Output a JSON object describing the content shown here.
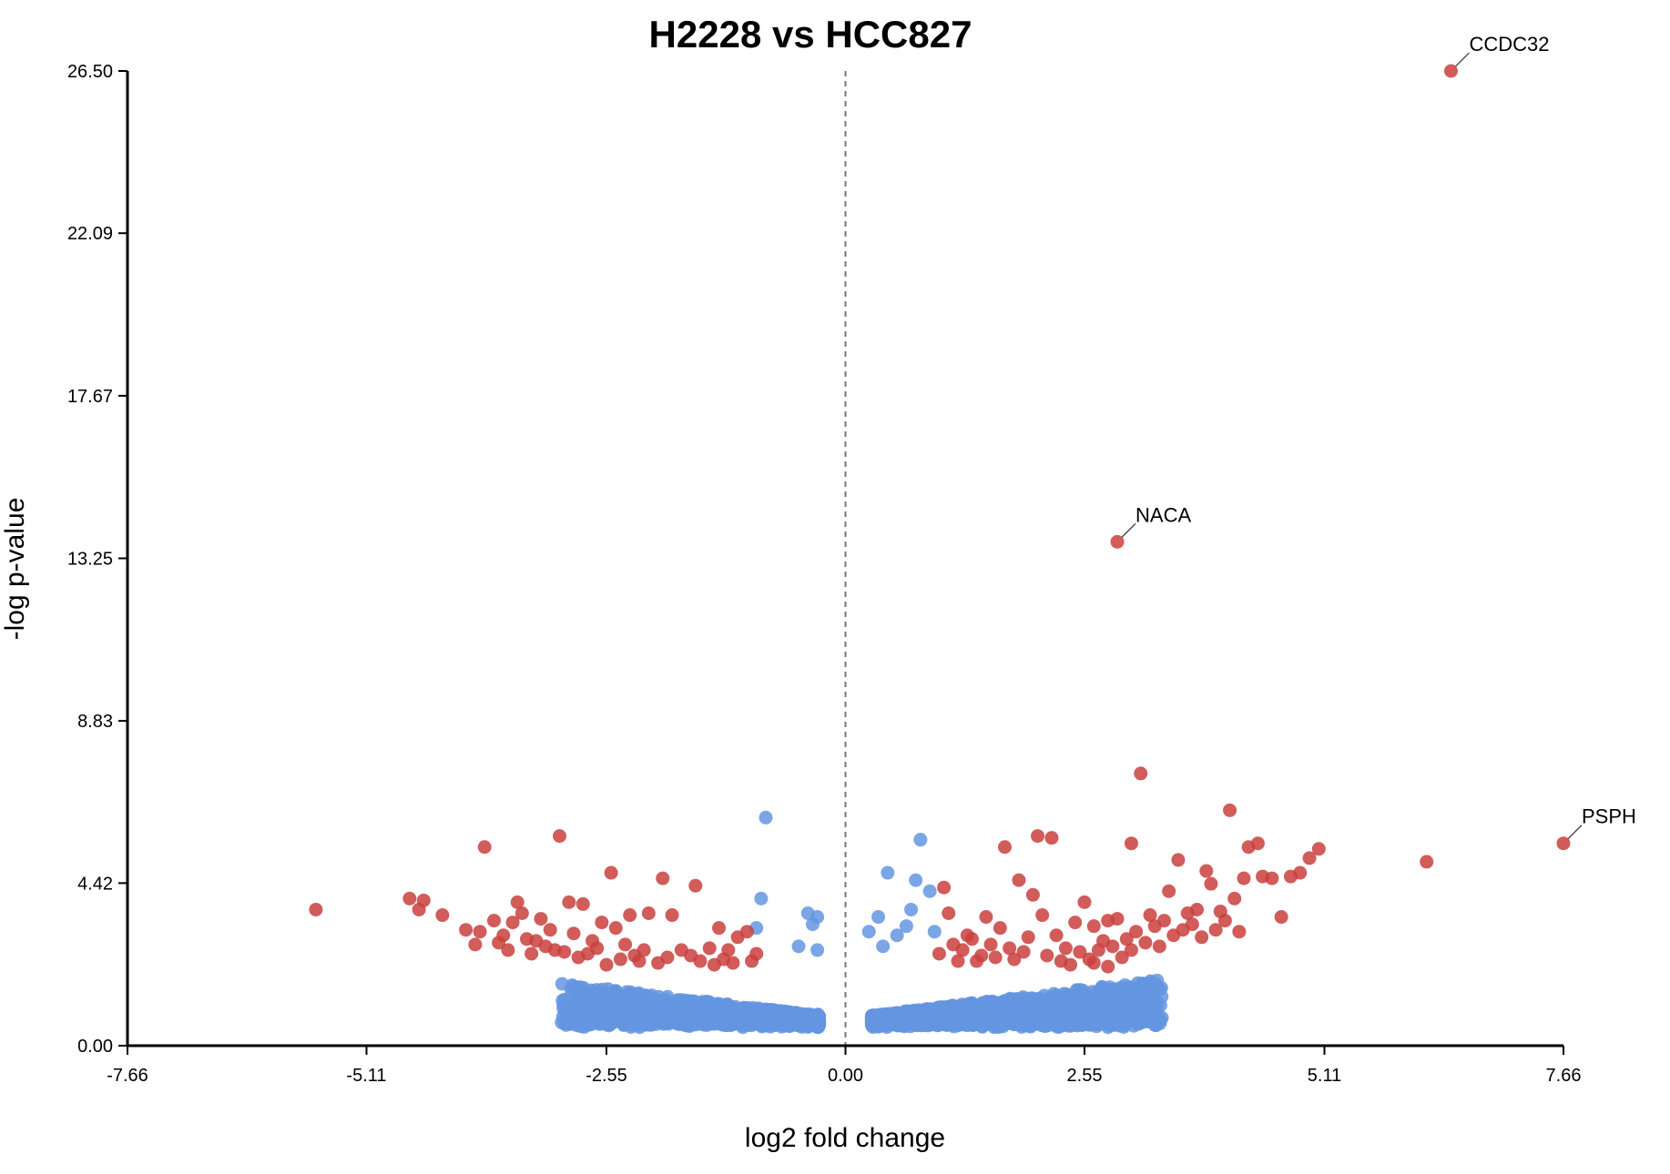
{
  "chart_data": {
    "type": "scatter",
    "title": "H2228 vs HCC827",
    "xlabel": "log2 fold change",
    "ylabel": "-log p-value",
    "xlim": [
      -7.66,
      7.66
    ],
    "ylim": [
      0,
      26.5
    ],
    "x_ticks": [
      "-7.66",
      "-5.11",
      "-2.55",
      "0.00",
      "2.55",
      "5.11",
      "7.66"
    ],
    "y_ticks": [
      "0.00",
      "4.42",
      "8.83",
      "13.25",
      "17.67",
      "22.09",
      "26.50"
    ],
    "reference_line_x": 0,
    "grid": false,
    "colors": {
      "significant": "#c9403d",
      "not_significant": "#6495e0"
    },
    "labeled_points": [
      {
        "gene": "CCDC32",
        "x": 6.46,
        "y": 26.5
      },
      {
        "gene": "NACA",
        "x": 2.9,
        "y": 13.7
      },
      {
        "gene": "PSPH",
        "x": 7.66,
        "y": 5.5
      }
    ],
    "series": [
      {
        "group": "significant",
        "points": [
          [
            -5.65,
            3.7
          ],
          [
            -4.65,
            4.0
          ],
          [
            -4.5,
            3.95
          ],
          [
            -4.55,
            3.7
          ],
          [
            -4.3,
            3.55
          ],
          [
            -4.05,
            3.15
          ],
          [
            -3.95,
            2.75
          ],
          [
            -3.9,
            3.1
          ],
          [
            -3.85,
            5.4
          ],
          [
            -3.75,
            3.4
          ],
          [
            -3.65,
            3.0
          ],
          [
            -3.55,
            3.35
          ],
          [
            -3.5,
            3.9
          ],
          [
            -3.45,
            3.6
          ],
          [
            -3.4,
            2.9
          ],
          [
            -3.35,
            2.5
          ],
          [
            -3.25,
            3.45
          ],
          [
            -3.15,
            3.15
          ],
          [
            -3.1,
            2.6
          ],
          [
            -3.05,
            5.7
          ],
          [
            -2.95,
            3.9
          ],
          [
            -2.9,
            3.05
          ],
          [
            -2.8,
            3.85
          ],
          [
            -2.7,
            2.85
          ],
          [
            -2.6,
            3.35
          ],
          [
            -2.5,
            4.7
          ],
          [
            -2.45,
            3.2
          ],
          [
            -2.3,
            3.55
          ],
          [
            -2.25,
            2.45
          ],
          [
            -2.1,
            3.6
          ],
          [
            -1.95,
            4.55
          ],
          [
            -1.85,
            3.55
          ],
          [
            -1.75,
            2.6
          ],
          [
            -1.65,
            2.45
          ],
          [
            -1.6,
            4.35
          ],
          [
            -1.45,
            2.65
          ],
          [
            -1.35,
            3.2
          ],
          [
            -1.25,
            2.6
          ],
          [
            -1.15,
            2.95
          ],
          [
            -1.05,
            3.1
          ],
          [
            -3.3,
            2.85
          ],
          [
            -3.2,
            2.7
          ],
          [
            -3.0,
            2.55
          ],
          [
            -2.85,
            2.4
          ],
          [
            -2.75,
            2.5
          ],
          [
            -2.65,
            2.65
          ],
          [
            -2.55,
            2.2
          ],
          [
            -2.4,
            2.35
          ],
          [
            -2.2,
            2.3
          ],
          [
            -2.0,
            2.25
          ],
          [
            -1.9,
            2.4
          ],
          [
            -1.55,
            2.3
          ],
          [
            -1.4,
            2.2
          ],
          [
            -1.3,
            2.35
          ],
          [
            -1.2,
            2.25
          ],
          [
            -2.35,
            2.75
          ],
          [
            -2.15,
            2.6
          ],
          [
            -3.6,
            2.6
          ],
          [
            -3.7,
            2.8
          ],
          [
            -1.0,
            2.3
          ],
          [
            -0.95,
            2.5
          ],
          [
            1.0,
            2.5
          ],
          [
            1.05,
            4.3
          ],
          [
            1.1,
            3.6
          ],
          [
            1.15,
            2.75
          ],
          [
            1.25,
            2.6
          ],
          [
            1.35,
            2.9
          ],
          [
            1.45,
            2.45
          ],
          [
            1.55,
            2.75
          ],
          [
            1.7,
            5.4
          ],
          [
            1.75,
            2.65
          ],
          [
            1.85,
            4.5
          ],
          [
            1.95,
            2.95
          ],
          [
            2.0,
            4.1
          ],
          [
            2.05,
            5.7
          ],
          [
            2.1,
            3.55
          ],
          [
            2.2,
            5.65
          ],
          [
            2.25,
            3.0
          ],
          [
            2.35,
            2.65
          ],
          [
            2.45,
            3.35
          ],
          [
            2.55,
            3.9
          ],
          [
            2.65,
            3.25
          ],
          [
            2.8,
            3.4
          ],
          [
            2.9,
            3.45
          ],
          [
            3.05,
            5.5
          ],
          [
            3.15,
            7.4
          ],
          [
            3.25,
            3.55
          ],
          [
            3.35,
            2.7
          ],
          [
            3.45,
            4.2
          ],
          [
            3.55,
            5.05
          ],
          [
            3.6,
            3.15
          ],
          [
            3.75,
            3.7
          ],
          [
            3.85,
            4.75
          ],
          [
            3.9,
            4.4
          ],
          [
            3.95,
            3.15
          ],
          [
            4.05,
            3.4
          ],
          [
            4.1,
            6.4
          ],
          [
            4.15,
            4.0
          ],
          [
            4.2,
            3.1
          ],
          [
            4.25,
            4.55
          ],
          [
            4.3,
            5.4
          ],
          [
            4.4,
            5.5
          ],
          [
            4.45,
            4.6
          ],
          [
            4.55,
            4.55
          ],
          [
            4.65,
            3.5
          ],
          [
            4.75,
            4.6
          ],
          [
            4.85,
            4.7
          ],
          [
            4.95,
            5.1
          ],
          [
            5.05,
            5.35
          ],
          [
            6.2,
            5.0
          ],
          [
            1.2,
            2.3
          ],
          [
            1.4,
            2.3
          ],
          [
            1.6,
            2.4
          ],
          [
            1.8,
            2.35
          ],
          [
            1.9,
            2.55
          ],
          [
            2.15,
            2.45
          ],
          [
            2.3,
            2.3
          ],
          [
            2.4,
            2.2
          ],
          [
            2.5,
            2.55
          ],
          [
            2.6,
            2.35
          ],
          [
            2.7,
            2.6
          ],
          [
            2.75,
            2.85
          ],
          [
            2.85,
            2.7
          ],
          [
            3.0,
            2.9
          ],
          [
            3.1,
            3.1
          ],
          [
            3.2,
            2.8
          ],
          [
            3.3,
            3.25
          ],
          [
            3.4,
            3.4
          ],
          [
            3.5,
            3.0
          ],
          [
            3.65,
            3.6
          ],
          [
            3.7,
            3.3
          ],
          [
            3.8,
            2.95
          ],
          [
            4.0,
            3.65
          ],
          [
            2.95,
            2.4
          ],
          [
            3.05,
            2.6
          ],
          [
            2.65,
            2.25
          ],
          [
            2.8,
            2.15
          ],
          [
            1.65,
            3.2
          ],
          [
            1.5,
            3.5
          ],
          [
            1.3,
            3.0
          ]
        ]
      }
    ]
  }
}
